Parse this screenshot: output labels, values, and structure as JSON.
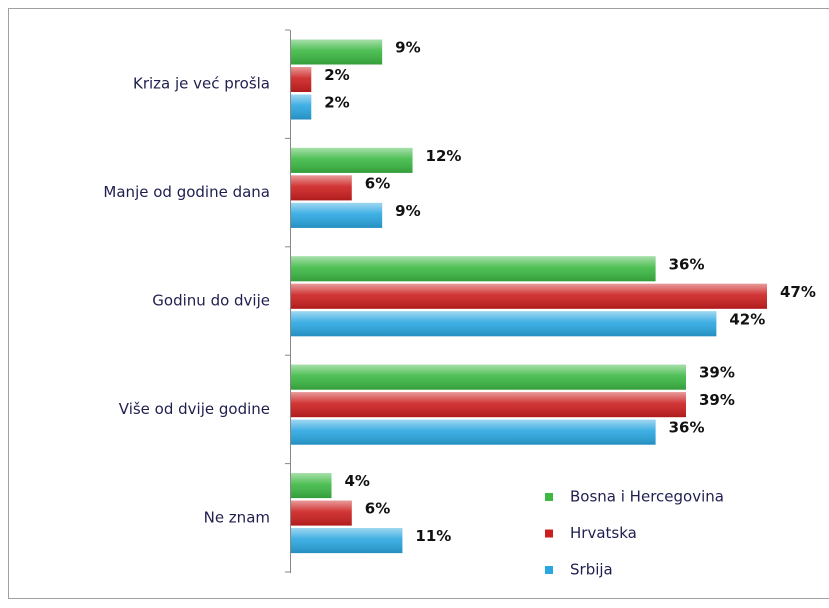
{
  "chart_data": {
    "type": "bar",
    "orientation": "horizontal",
    "categories": [
      "Kriza je već prošla",
      "Manje od godine dana",
      "Godinu do dvije",
      "Više od dvije godine",
      "Ne znam"
    ],
    "series": [
      {
        "name": "Bosna i Hercegovina",
        "color": "#3cb843",
        "values": [
          9,
          12,
          36,
          39,
          4
        ],
        "value_labels": [
          "9%",
          "12%",
          "36%",
          "39%",
          "4%"
        ]
      },
      {
        "name": "Hrvatska",
        "color": "#cc1f1f",
        "values": [
          2,
          6,
          47,
          39,
          6
        ],
        "value_labels": [
          "2%",
          "6%",
          "47%",
          "39%",
          "6%"
        ]
      },
      {
        "name": "Srbija",
        "color": "#2aa6e0",
        "values": [
          2,
          9,
          42,
          36,
          11
        ],
        "value_labels": [
          "2%",
          "9%",
          "42%",
          "36%",
          "11%"
        ]
      }
    ],
    "legend": "lower-right"
  }
}
